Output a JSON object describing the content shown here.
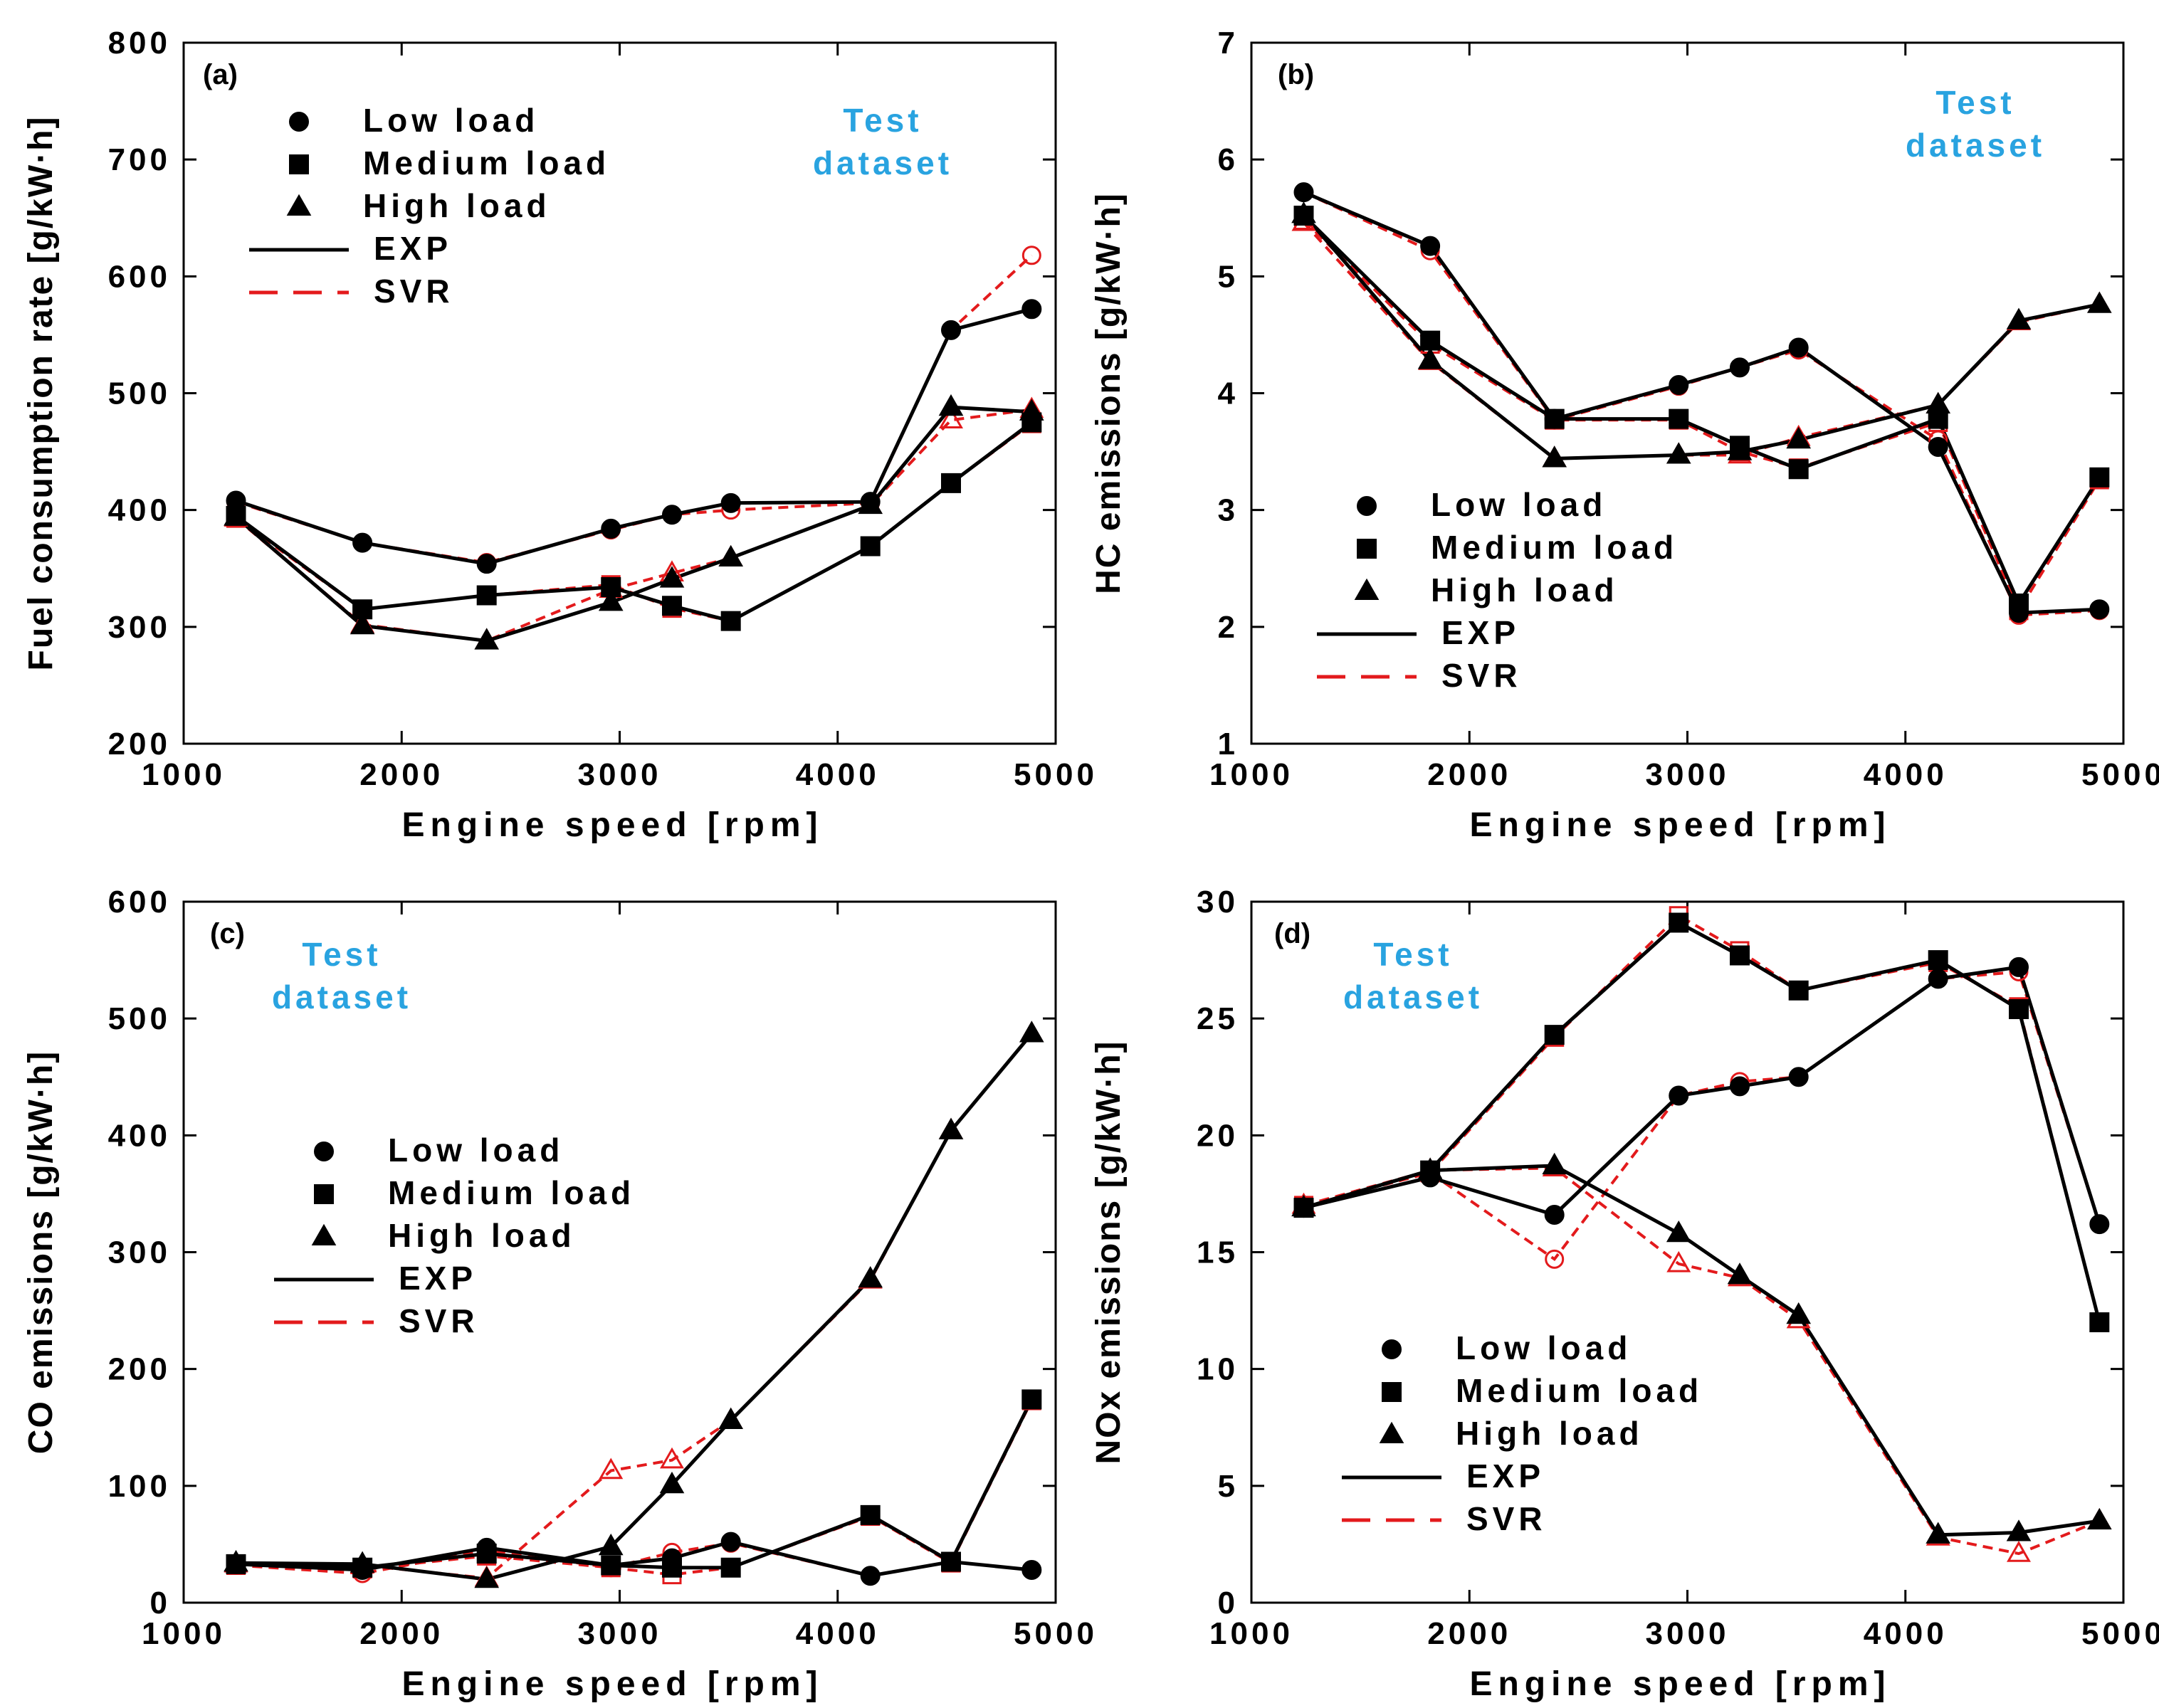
{
  "colors": {
    "exp": "#000000",
    "svr": "#e31a1c",
    "annotation": "#29a3e0"
  },
  "chart_data": [
    {
      "type": "line",
      "panel_label": "(a)",
      "xlabel": "Engine speed [rpm]",
      "ylabel": "Fuel consumption rate [g/kW·h]",
      "xlim": [
        1000,
        5000
      ],
      "ylim": [
        200,
        800
      ],
      "xticks": [
        "1000",
        "2000",
        "3000",
        "4000",
        "5000"
      ],
      "yticks": [
        "200",
        "300",
        "400",
        "500",
        "600",
        "700",
        "800"
      ],
      "annotation": [
        "Test",
        "dataset"
      ],
      "legend": {
        "low": "Low load",
        "medium": "Medium load",
        "high": "High load",
        "exp": "EXP",
        "svr": "SVR"
      },
      "x": [
        1240,
        1820,
        2390,
        2960,
        3240,
        3510,
        4150,
        4520,
        4890
      ],
      "series": [
        {
          "name": "Low load EXP",
          "load": "low",
          "kind": "exp",
          "values": [
            408,
            372,
            354,
            384,
            396,
            406,
            407,
            554,
            572
          ]
        },
        {
          "name": "Low load SVR",
          "load": "low",
          "kind": "svr",
          "values": [
            407,
            372,
            355,
            383,
            396,
            400,
            406,
            554,
            618
          ]
        },
        {
          "name": "Medium load EXP",
          "load": "medium",
          "kind": "exp",
          "values": [
            395,
            315,
            327,
            334,
            318,
            305,
            369,
            423,
            475
          ]
        },
        {
          "name": "Medium load SVR",
          "load": "medium",
          "kind": "svr",
          "values": [
            393,
            315,
            327,
            336,
            316,
            305,
            369,
            423,
            474
          ]
        },
        {
          "name": "High load EXP",
          "load": "high",
          "kind": "exp",
          "values": [
            394,
            301,
            288,
            321,
            341,
            359,
            404,
            488,
            484
          ]
        },
        {
          "name": "High load SVR",
          "load": "high",
          "kind": "svr",
          "values": [
            393,
            302,
            288,
            332,
            346,
            359,
            404,
            477,
            486
          ]
        }
      ]
    },
    {
      "type": "line",
      "panel_label": "(b)",
      "xlabel": "Engine speed [rpm]",
      "ylabel": "HC emissions [g/kW·h]",
      "xlim": [
        1000,
        5000
      ],
      "ylim": [
        1,
        7
      ],
      "xticks": [
        "1000",
        "2000",
        "3000",
        "4000",
        "5000"
      ],
      "yticks": [
        "1",
        "2",
        "3",
        "4",
        "5",
        "6",
        "7"
      ],
      "annotation": [
        "Test",
        "dataset"
      ],
      "legend": {
        "low": "Low load",
        "medium": "Medium load",
        "high": "High load",
        "exp": "EXP",
        "svr": "SVR"
      },
      "x": [
        1240,
        1820,
        2390,
        2960,
        3240,
        3510,
        4150,
        4520,
        4890
      ],
      "series": [
        {
          "name": "Low load EXP",
          "load": "low",
          "kind": "exp",
          "values": [
            5.72,
            5.26,
            3.78,
            4.07,
            4.22,
            4.39,
            3.54,
            2.12,
            2.15
          ]
        },
        {
          "name": "Low load SVR",
          "load": "low",
          "kind": "svr",
          "values": [
            5.72,
            5.22,
            3.77,
            4.06,
            4.22,
            4.37,
            3.6,
            2.1,
            2.14
          ]
        },
        {
          "name": "Medium load EXP",
          "load": "medium",
          "kind": "exp",
          "values": [
            5.52,
            4.45,
            3.78,
            3.78,
            3.55,
            3.35,
            3.78,
            2.2,
            3.28
          ]
        },
        {
          "name": "Medium load SVR",
          "load": "medium",
          "kind": "svr",
          "values": [
            5.48,
            4.42,
            3.77,
            3.77,
            3.5,
            3.36,
            3.75,
            2.14,
            3.26
          ]
        },
        {
          "name": "High load EXP",
          "load": "high",
          "kind": "exp",
          "values": [
            5.53,
            4.28,
            3.44,
            3.47,
            3.5,
            3.6,
            3.9,
            4.62,
            4.76
          ]
        },
        {
          "name": "High load SVR",
          "load": "high",
          "kind": "svr",
          "values": [
            5.46,
            4.27,
            3.44,
            3.47,
            3.47,
            3.62,
            3.9,
            4.61,
            4.76
          ]
        }
      ]
    },
    {
      "type": "line",
      "panel_label": "(c)",
      "xlabel": "Engine speed [rpm]",
      "ylabel": "CO emissions [g/kW·h]",
      "xlim": [
        1000,
        5000
      ],
      "ylim": [
        0,
        600
      ],
      "xticks": [
        "1000",
        "2000",
        "3000",
        "4000",
        "5000"
      ],
      "yticks": [
        "0",
        "100",
        "200",
        "300",
        "400",
        "500",
        "600"
      ],
      "annotation": [
        "Test",
        "dataset"
      ],
      "legend": {
        "low": "Low load",
        "medium": "Medium load",
        "high": "High load",
        "exp": "EXP",
        "svr": "SVR"
      },
      "x": [
        1240,
        1820,
        2390,
        2960,
        3240,
        3510,
        4150,
        4520,
        4890
      ],
      "series": [
        {
          "name": "Low load EXP",
          "load": "low",
          "kind": "exp",
          "values": [
            33,
            28,
            47,
            32,
            38,
            52,
            23,
            35,
            28
          ]
        },
        {
          "name": "Low load SVR",
          "load": "low",
          "kind": "svr",
          "values": [
            32,
            25,
            45,
            30,
            43,
            51,
            23,
            35,
            28
          ]
        },
        {
          "name": "Medium load EXP",
          "load": "medium",
          "kind": "exp",
          "values": [
            33,
            30,
            42,
            32,
            30,
            30,
            75,
            35,
            174
          ]
        },
        {
          "name": "Medium load SVR",
          "load": "medium",
          "kind": "svr",
          "values": [
            32,
            29,
            40,
            30,
            24,
            30,
            74,
            34,
            173
          ]
        },
        {
          "name": "High load EXP",
          "load": "high",
          "kind": "exp",
          "values": [
            34,
            33,
            20,
            48,
            101,
            156,
            277,
            404,
            487
          ]
        },
        {
          "name": "High load SVR",
          "load": "high",
          "kind": "svr",
          "values": [
            33,
            32,
            21,
            113,
            122,
            156,
            276,
            404,
            487
          ]
        }
      ]
    },
    {
      "type": "line",
      "panel_label": "(d)",
      "xlabel": "Engine speed [rpm]",
      "ylabel": "NOx emissions [g/kW·h]",
      "xlim": [
        1000,
        5000
      ],
      "ylim": [
        0,
        30
      ],
      "xticks": [
        "1000",
        "2000",
        "3000",
        "4000",
        "5000"
      ],
      "yticks": [
        "0",
        "5",
        "10",
        "15",
        "20",
        "25",
        "30"
      ],
      "annotation": [
        "Test",
        "dataset"
      ],
      "legend": {
        "low": "Low load",
        "medium": "Medium load",
        "high": "High load",
        "exp": "EXP",
        "svr": "SVR"
      },
      "x": [
        1240,
        1820,
        2390,
        2960,
        3240,
        3510,
        4150,
        4520,
        4890
      ],
      "series": [
        {
          "name": "Low load EXP",
          "load": "low",
          "kind": "exp",
          "values": [
            16.9,
            18.2,
            16.6,
            21.7,
            22.1,
            22.5,
            26.7,
            27.2,
            16.2
          ]
        },
        {
          "name": "Low load SVR",
          "load": "low",
          "kind": "svr",
          "values": [
            17.0,
            18.4,
            14.7,
            21.7,
            22.3,
            22.5,
            26.7,
            27.0,
            16.2
          ]
        },
        {
          "name": "Medium load EXP",
          "load": "medium",
          "kind": "exp",
          "values": [
            16.9,
            18.5,
            24.3,
            29.1,
            27.7,
            26.2,
            27.5,
            25.4,
            12.0
          ]
        },
        {
          "name": "Medium load SVR",
          "load": "medium",
          "kind": "svr",
          "values": [
            17.0,
            18.4,
            24.2,
            29.4,
            27.9,
            26.2,
            27.4,
            25.5,
            12.0
          ]
        },
        {
          "name": "High load EXP",
          "load": "high",
          "kind": "exp",
          "values": [
            16.9,
            18.5,
            18.7,
            15.8,
            14.0,
            12.3,
            2.9,
            3.0,
            3.5
          ]
        },
        {
          "name": "High load SVR",
          "load": "high",
          "kind": "svr",
          "values": [
            17.0,
            18.5,
            18.6,
            14.5,
            13.9,
            12.1,
            2.8,
            2.1,
            3.5
          ]
        }
      ]
    }
  ]
}
